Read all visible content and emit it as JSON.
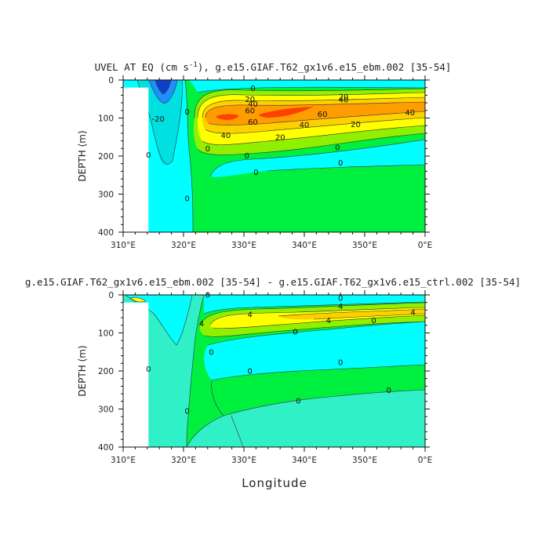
{
  "figure": {
    "xlabel": "Longitude"
  },
  "chart_data": [
    {
      "type": "heatmap",
      "title": "UVEL AT EQ (cm s",
      "title_sup": "-1",
      "title_tail": "), g.e15.GIAF.T62_gx1v6.e15_ebm.002 [35-54]",
      "xlabel": "Longitude",
      "ylabel": "DEPTH (m)",
      "x_ticks": [
        "310°E",
        "320°E",
        "330°E",
        "340°E",
        "350°E",
        "0°E"
      ],
      "x_tick_values": [
        310,
        320,
        330,
        340,
        350,
        360
      ],
      "y_ticks": [
        "0",
        "100",
        "200",
        "300",
        "400"
      ],
      "y_tick_values": [
        0,
        100,
        200,
        300,
        400
      ],
      "xlim": [
        310,
        360
      ],
      "ylim": [
        400,
        0
      ],
      "land": {
        "x_range": [
          310,
          314.2
        ],
        "depth_range": [
          20,
          400
        ]
      },
      "fill_levels": [
        {
          "min": -20,
          "color": "#00ffff",
          "region": "west_coastal"
        },
        {
          "min": -10,
          "color": "#00e0e0",
          "region": "west_coastal_core"
        },
        {
          "min": -20,
          "color": "#1e90ff",
          "region": "surface_westward_core"
        },
        {
          "min": -30,
          "color": "#1040c8",
          "region": "surface_westward_max"
        },
        {
          "min": 0,
          "color": "#00f040",
          "region": "deep_eastward"
        },
        {
          "min": 10,
          "color": "#90f000",
          "region": "undercurrent_outer"
        },
        {
          "min": 20,
          "color": "#ffff00",
          "region": "undercurrent_20"
        },
        {
          "min": 40,
          "color": "#ffd000",
          "region": "undercurrent_40"
        },
        {
          "min": 60,
          "color": "#ff9c00",
          "region": "undercurrent_60"
        },
        {
          "min": 80,
          "color": "#ff4000",
          "region": "undercurrent_core"
        }
      ],
      "contour_labels": [
        {
          "text": "0",
          "x": 331.5,
          "y": 22
        },
        {
          "text": "20",
          "x": 331.0,
          "y": 50
        },
        {
          "text": "40",
          "x": 331.5,
          "y": 63
        },
        {
          "text": "60",
          "x": 331.0,
          "y": 80
        },
        {
          "text": "20",
          "x": 346.5,
          "y": 44
        },
        {
          "text": "40",
          "x": 346.5,
          "y": 52
        },
        {
          "text": "60",
          "x": 343.0,
          "y": 90
        },
        {
          "text": "40",
          "x": 357.5,
          "y": 86
        },
        {
          "text": "60",
          "x": 331.5,
          "y": 110
        },
        {
          "text": "40",
          "x": 340.0,
          "y": 118
        },
        {
          "text": "20",
          "x": 348.5,
          "y": 117
        },
        {
          "text": "40",
          "x": 327.0,
          "y": 145
        },
        {
          "text": "20",
          "x": 336.0,
          "y": 150
        },
        {
          "text": "-20",
          "x": 315.8,
          "y": 102
        },
        {
          "text": "0",
          "x": 320.6,
          "y": 84
        },
        {
          "text": "0",
          "x": 314.2,
          "y": 197
        },
        {
          "text": "0",
          "x": 320.6,
          "y": 311
        },
        {
          "text": "0",
          "x": 324.0,
          "y": 180
        },
        {
          "text": "0",
          "x": 330.5,
          "y": 199
        },
        {
          "text": "0",
          "x": 332.0,
          "y": 242
        },
        {
          "text": "0",
          "x": 345.5,
          "y": 177
        },
        {
          "text": "0",
          "x": 346.0,
          "y": 218
        }
      ]
    },
    {
      "type": "heatmap",
      "title": "g.e15.GIAF.T62_gx1v6.e15_ebm.002 [35-54] - g.e15.GIAF.T62_gx1v6.e15_ctrl.002 [35-54]",
      "xlabel": "Longitude",
      "ylabel": "DEPTH (m)",
      "x_ticks": [
        "310°E",
        "320°E",
        "330°E",
        "340°E",
        "350°E",
        "0°E"
      ],
      "x_tick_values": [
        310,
        320,
        330,
        340,
        350,
        360
      ],
      "y_ticks": [
        "0",
        "100",
        "200",
        "300",
        "400"
      ],
      "y_tick_values": [
        0,
        100,
        200,
        300,
        400
      ],
      "xlim": [
        310,
        360
      ],
      "ylim": [
        400,
        0
      ],
      "land": {
        "x_range": [
          310,
          314.2
        ],
        "depth_range": [
          20,
          400
        ]
      },
      "fill_levels": [
        {
          "min": -2,
          "color": "#00ffff",
          "region": "negative_anomaly"
        },
        {
          "min": -1,
          "color": "#30f0c8",
          "region": "weak_negative"
        },
        {
          "min": 0,
          "color": "#00f040",
          "region": "weak_positive"
        },
        {
          "min": 2,
          "color": "#90f000",
          "region": "positive_2"
        },
        {
          "min": 4,
          "color": "#ffff00",
          "region": "positive_4"
        },
        {
          "min": 6,
          "color": "#ffd000",
          "region": "positive_6"
        }
      ],
      "contour_labels": [
        {
          "text": "0",
          "x": 324.0,
          "y": 0
        },
        {
          "text": "0",
          "x": 346.0,
          "y": 8
        },
        {
          "text": "4",
          "x": 346.0,
          "y": 30
        },
        {
          "text": "4",
          "x": 331.0,
          "y": 52
        },
        {
          "text": "4",
          "x": 323.0,
          "y": 75
        },
        {
          "text": "4",
          "x": 344.0,
          "y": 67
        },
        {
          "text": "4",
          "x": 358.0,
          "y": 45
        },
        {
          "text": "0",
          "x": 351.5,
          "y": 67
        },
        {
          "text": "0",
          "x": 338.5,
          "y": 97
        },
        {
          "text": "0",
          "x": 324.6,
          "y": 150
        },
        {
          "text": "0",
          "x": 331.0,
          "y": 200
        },
        {
          "text": "0",
          "x": 346.0,
          "y": 177
        },
        {
          "text": "0",
          "x": 314.2,
          "y": 195
        },
        {
          "text": "0",
          "x": 320.6,
          "y": 305
        },
        {
          "text": "0",
          "x": 339.0,
          "y": 278
        },
        {
          "text": "0",
          "x": 354.0,
          "y": 250
        }
      ]
    }
  ]
}
